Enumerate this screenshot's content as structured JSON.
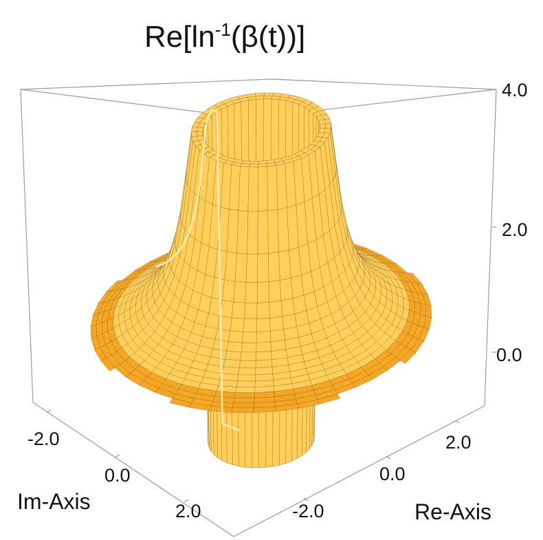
{
  "chart_data": {
    "type": "surface3d",
    "title": "Re[ln⁻¹(β(t))]",
    "title_parts": {
      "main": "Re[ln",
      "sup": "-1",
      "tail": "(β(t))]"
    },
    "xlabel": "Re-Axis",
    "ylabel": "Im-Axis",
    "zlabel": "",
    "x_ticks": [
      "-2.0",
      "0.0",
      "2.0"
    ],
    "y_ticks": [
      "-2.0",
      "0.0",
      "2.0"
    ],
    "z_ticks": [
      "0.0",
      "2.0",
      "4.0"
    ],
    "xlim": [
      -3,
      3
    ],
    "ylim": [
      -3,
      3
    ],
    "zlim": [
      -1,
      4
    ],
    "surface": {
      "description": "Re of 1/ln(r) over the complex plane; spike to +4 and pit to -1 near |t|=1",
      "singularity": {
        "re": 1,
        "im": 0
      },
      "plateau_value": 0.6,
      "peak_value": 4.0,
      "trough_value": -1.0
    },
    "colors": {
      "surface": "#f5a623",
      "surface_light": "#ffcf5a",
      "surface_dark": "#c47d0e",
      "mesh": "#6b5424",
      "highlight_line": "#fff2c4",
      "box": "#9a9a9a"
    },
    "box": true,
    "grid": false
  }
}
